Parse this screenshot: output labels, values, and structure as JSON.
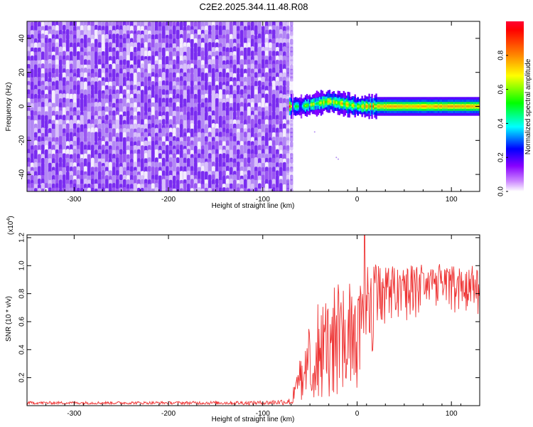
{
  "title": "C2E2.2025.344.11.48.R08",
  "colors": {
    "axis": "#000000",
    "snr_line": "#ee3333",
    "spectrogram_noise": "#8a3cf0"
  },
  "chart_data": [
    {
      "type": "heatmap",
      "xlabel": "Height of straight line (km)",
      "ylabel": "Frequency (Hz)",
      "xlim": [
        -350,
        130
      ],
      "ylim": [
        -50,
        50
      ],
      "x_ticks": [
        "-300",
        "-200",
        "-100",
        "0",
        "100"
      ],
      "y_ticks": [
        "-40",
        "-20",
        "0",
        "20",
        "40"
      ],
      "colorbar": {
        "label": "Normalized spectral amplitude",
        "range": [
          0,
          1
        ],
        "ticks": [
          "0.0",
          "0.2",
          "0.4",
          "0.6",
          "0.8"
        ],
        "colormap": [
          "#ffffff",
          "#8800ff",
          "#0000ff",
          "#00ffff",
          "#00ff00",
          "#ffff00",
          "#ff8800",
          "#ff0000"
        ]
      },
      "noise_region_x": [
        -350,
        -72
      ],
      "carrier": {
        "frequency_hz": 0,
        "x_start": -72,
        "points": [
          {
            "x": -70,
            "f": 0,
            "amp": 0.35
          },
          {
            "x": -60,
            "f": 0,
            "amp": 0.45
          },
          {
            "x": -50,
            "f": 1,
            "amp": 0.55
          },
          {
            "x": -40,
            "f": 2,
            "amp": 0.6
          },
          {
            "x": -30,
            "f": 3,
            "amp": 0.65
          },
          {
            "x": -20,
            "f": 2,
            "amp": 0.65
          },
          {
            "x": -10,
            "f": 1,
            "amp": 0.75
          },
          {
            "x": 0,
            "f": 0,
            "amp": 0.6
          },
          {
            "x": 10,
            "f": 0,
            "amp": 0.7
          },
          {
            "x": 20,
            "f": 0,
            "amp": 0.8
          },
          {
            "x": 40,
            "f": 0,
            "amp": 0.8
          },
          {
            "x": 60,
            "f": 0,
            "amp": 0.8
          },
          {
            "x": 80,
            "f": 0,
            "amp": 0.8
          },
          {
            "x": 100,
            "f": 0,
            "amp": 0.82
          },
          {
            "x": 130,
            "f": 0,
            "amp": 0.8
          }
        ]
      }
    },
    {
      "type": "line",
      "xlabel": "Height of straight line (km)",
      "ylabel": "SNR (10 * v/v)",
      "scale_note": "(x10",
      "scale_exp": "4",
      "scale_close": ")",
      "xlim": [
        -350,
        130
      ],
      "ylim": [
        0,
        1.22
      ],
      "x_ticks": [
        "-300",
        "-200",
        "-100",
        "0",
        "100"
      ],
      "y_ticks": [
        "0.2",
        "0.4",
        "0.6",
        "0.8",
        "1.0",
        "1.2"
      ],
      "series": [
        {
          "x": [
            -350,
            -200,
            -100,
            -70,
            -60,
            -50,
            -40,
            -30,
            -20,
            -10,
            0,
            10,
            20,
            30,
            40,
            50,
            60,
            70,
            80,
            90,
            100,
            110,
            120,
            130
          ],
          "y": [
            0.02,
            0.02,
            0.02,
            0.03,
            0.15,
            0.3,
            0.4,
            0.45,
            0.5,
            0.55,
            0.62,
            0.75,
            0.8,
            0.84,
            0.86,
            0.88,
            0.88,
            0.89,
            0.88,
            0.88,
            0.87,
            0.86,
            0.86,
            0.85
          ],
          "y_max": [
            0.03,
            0.03,
            0.04,
            0.06,
            0.35,
            0.62,
            0.75,
            0.8,
            0.88,
            0.92,
            0.96,
            1.0,
            1.02,
            1.02,
            1.02,
            1.02,
            1.02,
            1.02,
            1.02,
            1.01,
            1.02,
            1.0,
            1.0,
            1.0
          ],
          "y_min": [
            0.01,
            0.01,
            0.01,
            0.01,
            0.02,
            0.04,
            0.05,
            0.05,
            0.06,
            0.1,
            0.12,
            0.3,
            0.4,
            0.5,
            0.55,
            0.6,
            0.62,
            0.64,
            0.65,
            0.66,
            0.66,
            0.66,
            0.66,
            0.65
          ],
          "spike": {
            "x": 8,
            "y": 1.22
          }
        }
      ]
    }
  ]
}
